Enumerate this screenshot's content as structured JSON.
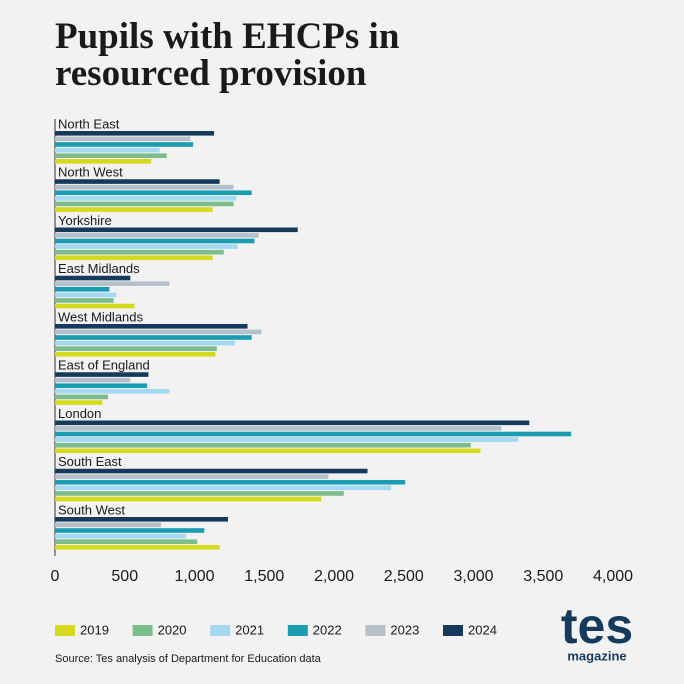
{
  "chart_data": {
    "type": "bar",
    "orientation": "horizontal",
    "title": "Pupils with EHCPs in resourced provision",
    "source": "Source: Tes analysis of Department for Education data",
    "logo": {
      "name": "tes",
      "tagline": "magazine"
    },
    "categories": [
      "North East",
      "North West",
      "Yorkshire",
      "East Midlands",
      "West Midlands",
      "East of England",
      "London",
      "South East",
      "South West"
    ],
    "series": [
      {
        "name": "2019",
        "color": "#d6d91c",
        "values": [
          690,
          1130,
          1130,
          570,
          1150,
          340,
          3050,
          1910,
          1180
        ]
      },
      {
        "name": "2020",
        "color": "#7dbd8a",
        "values": [
          800,
          1280,
          1210,
          420,
          1160,
          380,
          2980,
          2070,
          1020
        ]
      },
      {
        "name": "2021",
        "color": "#a5d9f2",
        "values": [
          750,
          1300,
          1310,
          440,
          1290,
          820,
          3320,
          2410,
          940
        ]
      },
      {
        "name": "2022",
        "color": "#1a9db0",
        "values": [
          990,
          1410,
          1430,
          390,
          1410,
          660,
          3700,
          2510,
          1070
        ]
      },
      {
        "name": "2023",
        "color": "#b6c0cb",
        "values": [
          970,
          1280,
          1460,
          820,
          1480,
          540,
          3200,
          1960,
          760
        ]
      },
      {
        "name": "2024",
        "color": "#163a5c",
        "values": [
          1140,
          1180,
          1740,
          540,
          1380,
          670,
          3400,
          2240,
          1240
        ]
      }
    ],
    "xlim": [
      0,
      4000
    ],
    "xticks": [
      0,
      500,
      {
        "value": 1000,
        "label": "1,000"
      },
      {
        "value": 1500,
        "label": "1,500"
      },
      {
        "value": 2000,
        "label": "2,000"
      },
      {
        "value": 2500,
        "label": "2,500"
      },
      {
        "value": 3000,
        "label": "3,000"
      },
      {
        "value": 3500,
        "label": "3,500"
      },
      {
        "value": 4000,
        "label": "4,000"
      }
    ],
    "grid": false
  }
}
